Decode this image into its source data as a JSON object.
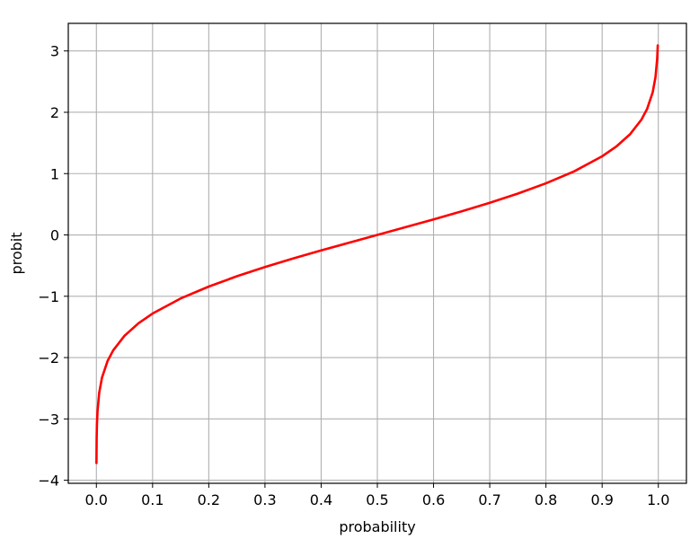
{
  "chart_data": {
    "type": "line",
    "title": "",
    "xlabel": "probability",
    "ylabel": "probit",
    "xlim": [
      -0.05,
      1.05
    ],
    "ylim": [
      -4.05,
      3.45
    ],
    "grid": true,
    "x_ticks": [
      0.0,
      0.1,
      0.2,
      0.3,
      0.4,
      0.5,
      0.6,
      0.7,
      0.8,
      0.9,
      1.0
    ],
    "x_tick_labels": [
      "0.0",
      "0.1",
      "0.2",
      "0.3",
      "0.4",
      "0.5",
      "0.6",
      "0.7",
      "0.8",
      "0.9",
      "1.0"
    ],
    "y_ticks": [
      -4,
      -3,
      -2,
      -1,
      0,
      1,
      2,
      3
    ],
    "y_tick_labels": [
      "−4",
      "−3",
      "−2",
      "−1",
      "0",
      "1",
      "2",
      "3"
    ],
    "series": [
      {
        "color": "#ff0000",
        "x": [
          0.0001,
          0.0005,
          0.001,
          0.002,
          0.005,
          0.01,
          0.02,
          0.03,
          0.05,
          0.075,
          0.1,
          0.15,
          0.2,
          0.25,
          0.3,
          0.35,
          0.4,
          0.45,
          0.5,
          0.55,
          0.6,
          0.65,
          0.7,
          0.75,
          0.8,
          0.85,
          0.9,
          0.925,
          0.95,
          0.97,
          0.98,
          0.99,
          0.995,
          0.998,
          0.999
        ],
        "y": [
          -3.719,
          -3.291,
          -3.09,
          -2.878,
          -2.576,
          -2.326,
          -2.054,
          -1.881,
          -1.645,
          -1.44,
          -1.282,
          -1.036,
          -0.842,
          -0.674,
          -0.524,
          -0.385,
          -0.253,
          -0.126,
          0.0,
          0.126,
          0.253,
          0.385,
          0.524,
          0.674,
          0.842,
          1.036,
          1.282,
          1.44,
          1.645,
          1.881,
          2.054,
          2.326,
          2.576,
          2.878,
          3.09
        ]
      }
    ]
  }
}
